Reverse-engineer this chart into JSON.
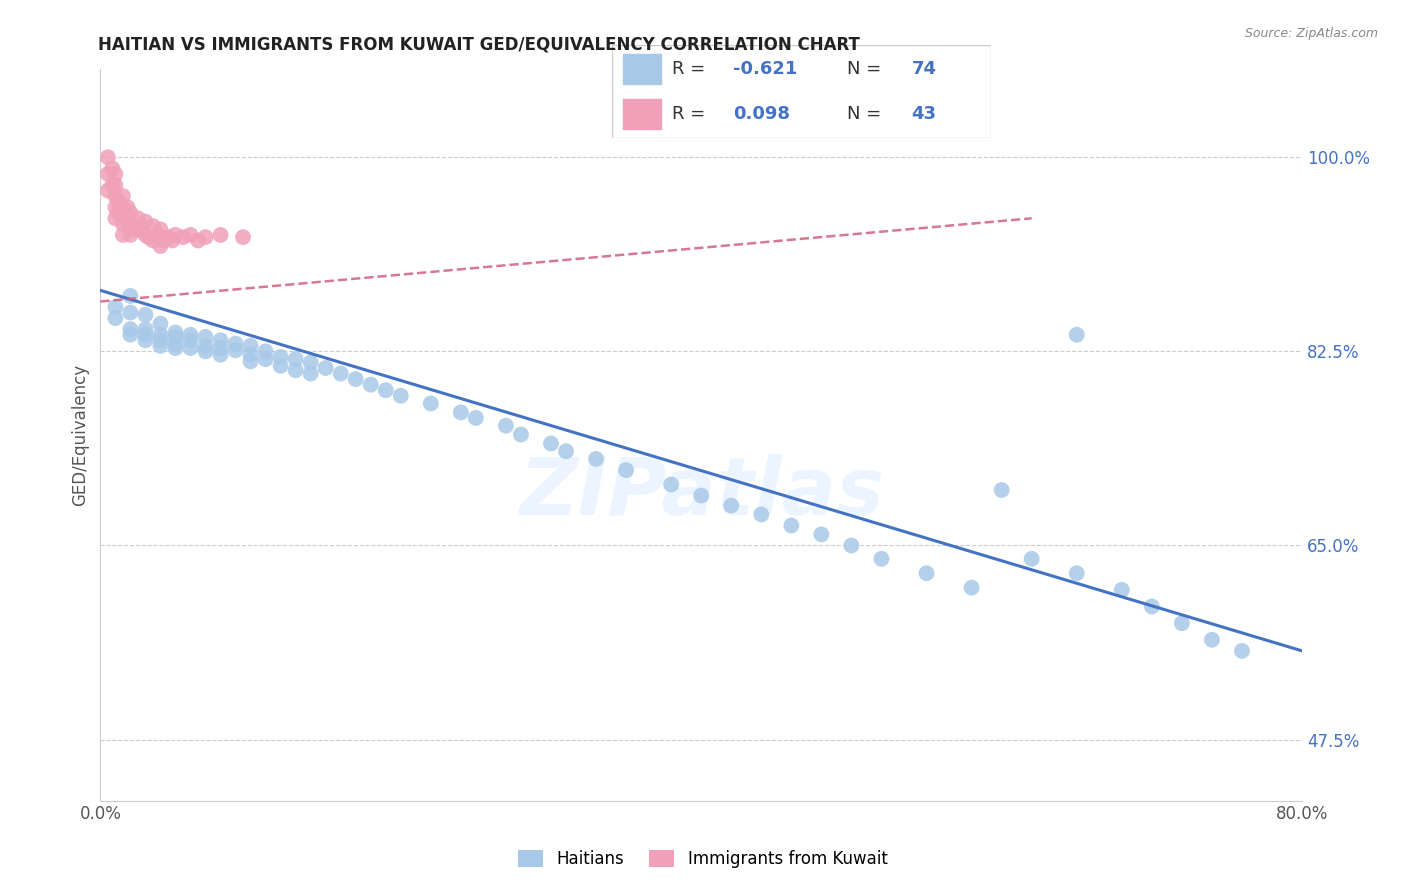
{
  "title": "HAITIAN VS IMMIGRANTS FROM KUWAIT GED/EQUIVALENCY CORRELATION CHART",
  "source": "Source: ZipAtlas.com",
  "ylabel": "GED/Equivalency",
  "watermark": "ZIPatlas",
  "xlim": [
    0.0,
    0.8
  ],
  "ylim": [
    0.42,
    1.08
  ],
  "xticks": [
    0.0,
    0.1,
    0.2,
    0.3,
    0.4,
    0.5,
    0.6,
    0.7,
    0.8
  ],
  "xticklabels": [
    "0.0%",
    "",
    "",
    "",
    "",
    "",
    "",
    "",
    "80.0%"
  ],
  "ytick_positions": [
    0.475,
    0.65,
    0.825,
    1.0
  ],
  "ytick_labels": [
    "47.5%",
    "65.0%",
    "82.5%",
    "100.0%"
  ],
  "blue_R": -0.621,
  "blue_N": 74,
  "pink_R": 0.098,
  "pink_N": 43,
  "blue_color": "#a8c8e8",
  "pink_color": "#f0a0b8",
  "blue_line_color": "#4472c4",
  "pink_line_color": "#d06080",
  "legend_label_blue": "Haitians",
  "legend_label_pink": "Immigrants from Kuwait",
  "blue_scatter_x": [
    0.01,
    0.01,
    0.02,
    0.02,
    0.02,
    0.02,
    0.03,
    0.03,
    0.03,
    0.03,
    0.04,
    0.04,
    0.04,
    0.04,
    0.05,
    0.05,
    0.05,
    0.05,
    0.06,
    0.06,
    0.06,
    0.07,
    0.07,
    0.07,
    0.08,
    0.08,
    0.08,
    0.09,
    0.09,
    0.1,
    0.1,
    0.1,
    0.11,
    0.11,
    0.12,
    0.12,
    0.13,
    0.13,
    0.14,
    0.14,
    0.15,
    0.16,
    0.17,
    0.18,
    0.19,
    0.2,
    0.22,
    0.24,
    0.25,
    0.27,
    0.28,
    0.3,
    0.31,
    0.33,
    0.35,
    0.38,
    0.4,
    0.42,
    0.44,
    0.46,
    0.48,
    0.5,
    0.52,
    0.55,
    0.58,
    0.6,
    0.62,
    0.65,
    0.68,
    0.7,
    0.72,
    0.74,
    0.76,
    0.65
  ],
  "blue_scatter_y": [
    0.865,
    0.855,
    0.875,
    0.86,
    0.845,
    0.84,
    0.858,
    0.845,
    0.84,
    0.835,
    0.85,
    0.84,
    0.835,
    0.83,
    0.842,
    0.838,
    0.832,
    0.828,
    0.84,
    0.835,
    0.828,
    0.838,
    0.83,
    0.825,
    0.835,
    0.828,
    0.822,
    0.832,
    0.826,
    0.83,
    0.822,
    0.816,
    0.825,
    0.818,
    0.82,
    0.812,
    0.818,
    0.808,
    0.815,
    0.805,
    0.81,
    0.805,
    0.8,
    0.795,
    0.79,
    0.785,
    0.778,
    0.77,
    0.765,
    0.758,
    0.75,
    0.742,
    0.735,
    0.728,
    0.718,
    0.705,
    0.695,
    0.686,
    0.678,
    0.668,
    0.66,
    0.65,
    0.638,
    0.625,
    0.612,
    0.7,
    0.638,
    0.625,
    0.61,
    0.595,
    0.58,
    0.565,
    0.555,
    0.84
  ],
  "pink_scatter_x": [
    0.005,
    0.005,
    0.005,
    0.008,
    0.008,
    0.01,
    0.01,
    0.01,
    0.01,
    0.01,
    0.012,
    0.012,
    0.015,
    0.015,
    0.015,
    0.015,
    0.018,
    0.018,
    0.02,
    0.02,
    0.02,
    0.022,
    0.025,
    0.025,
    0.028,
    0.03,
    0.03,
    0.032,
    0.035,
    0.035,
    0.038,
    0.04,
    0.04,
    0.042,
    0.045,
    0.048,
    0.05,
    0.055,
    0.06,
    0.065,
    0.07,
    0.08,
    0.095
  ],
  "pink_scatter_y": [
    1.0,
    0.985,
    0.97,
    0.99,
    0.975,
    0.985,
    0.975,
    0.965,
    0.955,
    0.945,
    0.96,
    0.95,
    0.965,
    0.955,
    0.94,
    0.93,
    0.955,
    0.942,
    0.95,
    0.94,
    0.93,
    0.935,
    0.945,
    0.935,
    0.935,
    0.942,
    0.93,
    0.928,
    0.938,
    0.925,
    0.93,
    0.935,
    0.92,
    0.925,
    0.928,
    0.925,
    0.93,
    0.928,
    0.93,
    0.925,
    0.928,
    0.93,
    0.928
  ],
  "blue_line_x": [
    0.0,
    0.8
  ],
  "blue_line_y": [
    0.88,
    0.555
  ],
  "pink_line_x": [
    0.0,
    0.62
  ],
  "pink_line_y": [
    0.87,
    0.945
  ]
}
